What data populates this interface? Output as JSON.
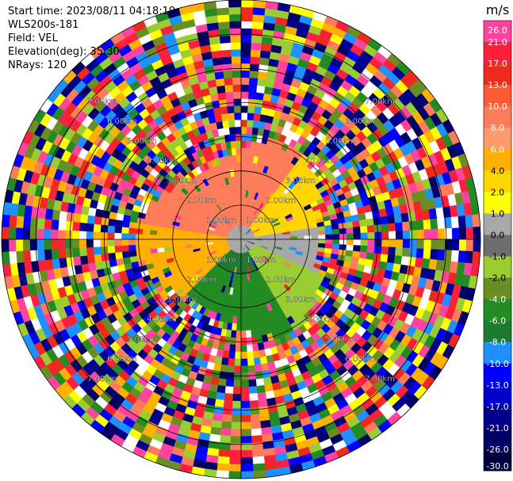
{
  "info": {
    "start_time": "Start time: 2023/08/11 04:18:19",
    "instrument": "WLS200s-181",
    "field": "Field: VEL",
    "elevation": "Elevation(deg): 35.30",
    "nrays": "NRays: 120"
  },
  "chart_data": {
    "type": "heatmap",
    "subtype": "polar-ppi",
    "range_ring_labels": [
      "1.00km",
      "2.00km",
      "3.00km",
      "4.00km",
      "5.00km",
      "6.00km",
      "7.00km"
    ],
    "n_rays": 120,
    "colorbar": {
      "unit": "m/s",
      "ticks": [
        "26.0",
        "21.0",
        "17.0",
        "13.0",
        "10.0",
        "8.0",
        "6.0",
        "4.0",
        "2.0",
        "1.0",
        "0.0",
        "-1.0",
        "-2.0",
        "-4.0",
        "-6.0",
        "-8.0",
        "-10.0",
        "-13.0",
        "-17.0",
        "-21.0",
        "-26.0",
        "-30.0"
      ],
      "colors": [
        "#ff44a0",
        "#ff1f3c",
        "#ee2a1e",
        "#ff5a32",
        "#ff7c5a",
        "#ff9a6a",
        "#ffb000",
        "#ffd600",
        "#ffff00",
        "#a8a8a8",
        "#6e6e6e",
        "#9acd32",
        "#6b8e23",
        "#228b22",
        "#1e7a30",
        "#1e90ff",
        "#0000ff",
        "#0000cd",
        "#00008b",
        "#000066",
        "#000040"
      ]
    },
    "field_regions": [
      {
        "sector": "north-west",
        "velocity_ms": 8
      },
      {
        "sector": "north-east",
        "velocity_ms": 2
      },
      {
        "sector": "west",
        "velocity_ms": 4
      },
      {
        "sector": "east",
        "velocity_ms": -2
      },
      {
        "sector": "south",
        "velocity_ms": -6
      },
      {
        "sector": "south-core",
        "velocity_ms": -8
      },
      {
        "sector": "east-near",
        "velocity_ms": 0
      }
    ],
    "noise_palette": [
      "#ff1f3c",
      "#ff44a0",
      "#ee2a1e",
      "#ffb000",
      "#ffff00",
      "#0000ff",
      "#00008b",
      "#228b22",
      "#1e90ff",
      "#9acd32",
      "#ff7c5a",
      "#ffffff",
      "#000066",
      "#6b8e23"
    ]
  }
}
